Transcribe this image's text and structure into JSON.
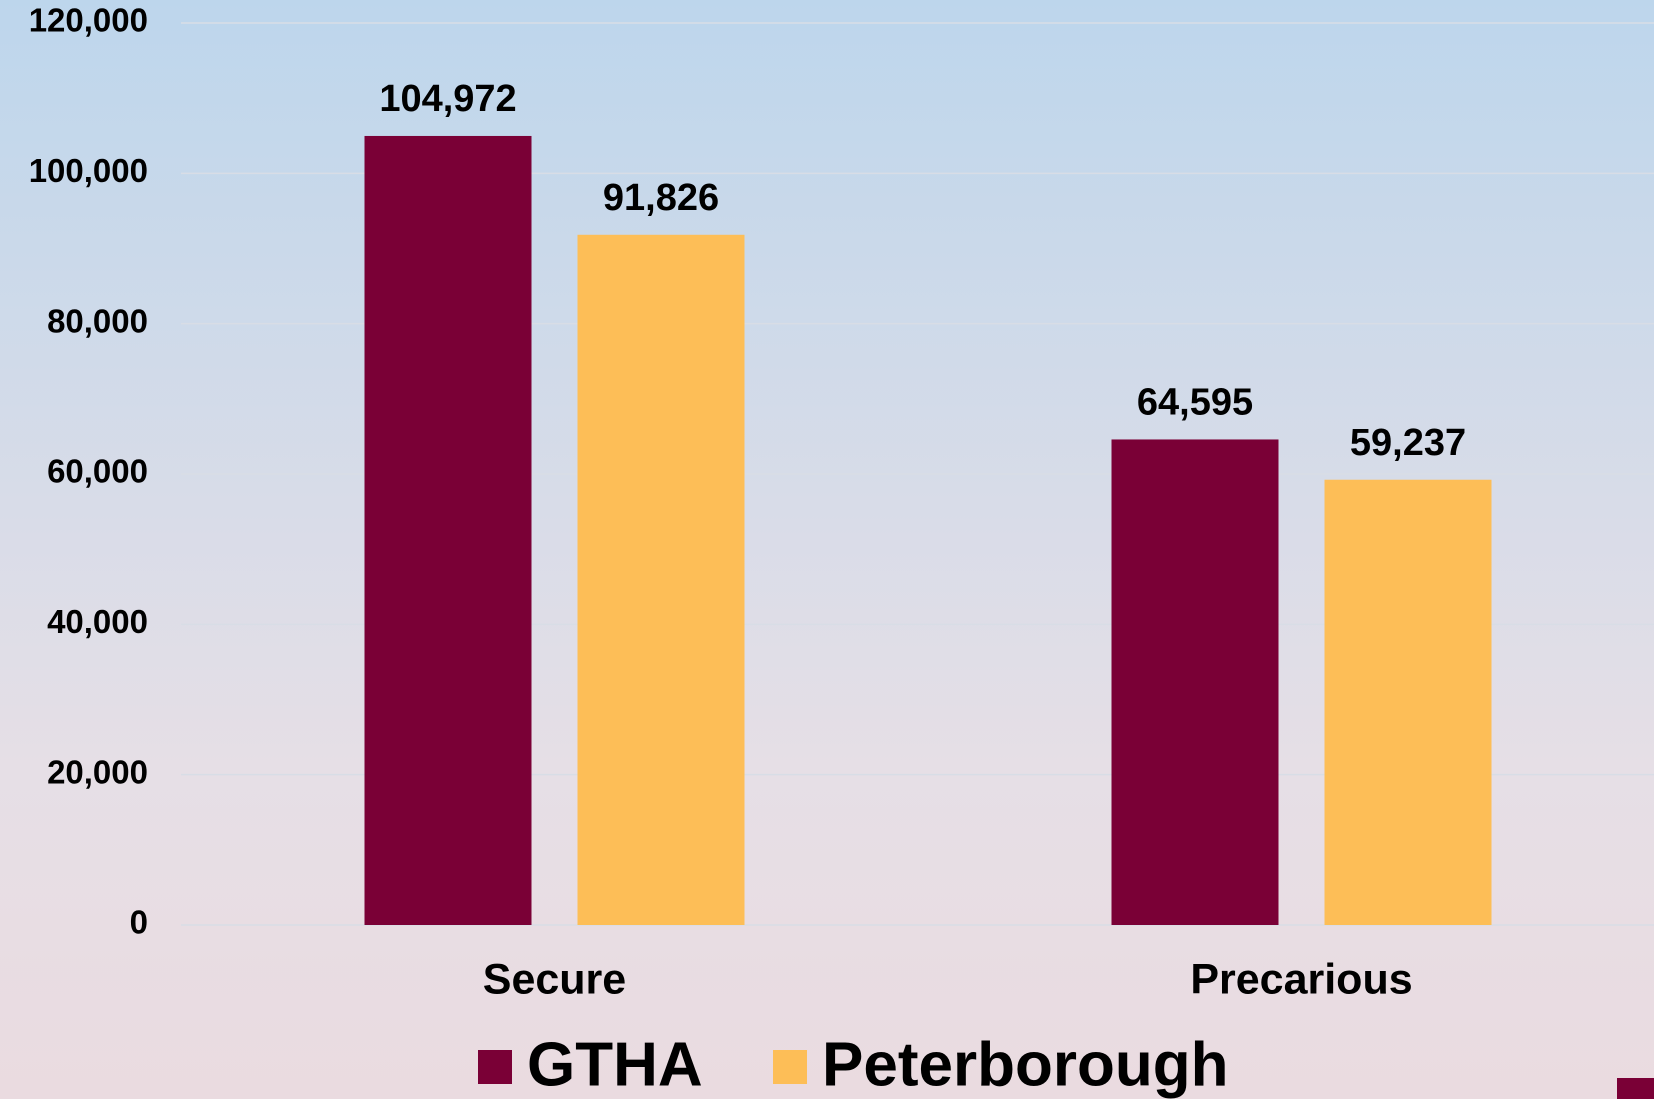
{
  "chart_data": {
    "type": "bar",
    "categories": [
      "Secure",
      "Precarious"
    ],
    "series": [
      {
        "name": "GTHA",
        "color": "#7a0036",
        "values": [
          104972,
          64595
        ],
        "value_labels": [
          "104,972",
          "64,595"
        ]
      },
      {
        "name": "Peterborough",
        "color": "#fdbe57",
        "values": [
          91826,
          59237
        ],
        "value_labels": [
          "91,826",
          "59,237"
        ]
      }
    ],
    "ylim": [
      0,
      120000
    ],
    "yticks": [
      0,
      {
        "value": 20000,
        "label": "20,000"
      },
      {
        "value": 40000,
        "label": "40,000"
      },
      {
        "value": 60000,
        "label": "60,000"
      },
      {
        "value": 80000,
        "label": "80,000"
      },
      {
        "value": 100000,
        "label": "100,000"
      },
      {
        "value": 120000,
        "label": "120,000"
      }
    ],
    "grid": true
  }
}
